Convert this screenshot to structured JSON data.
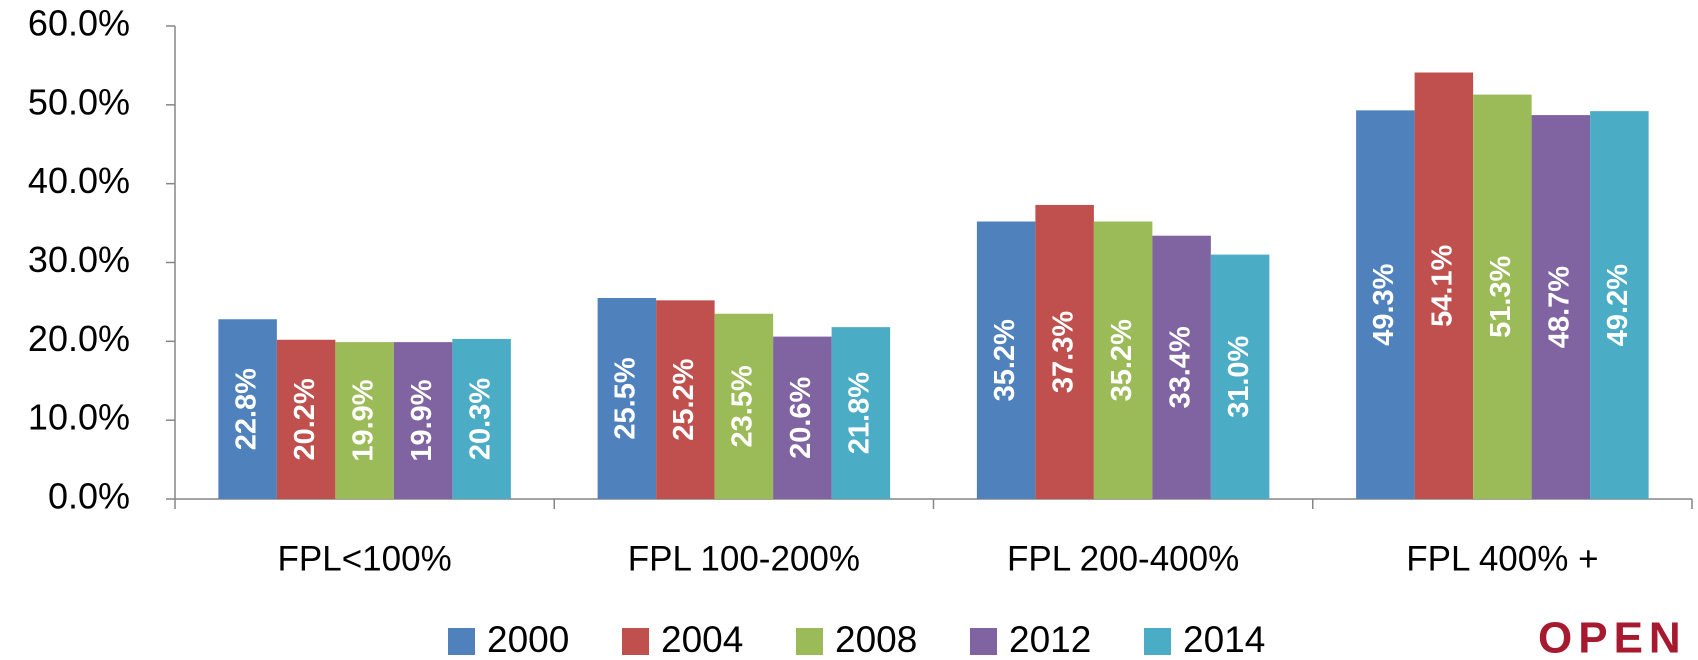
{
  "chart_data": {
    "type": "bar",
    "categories": [
      "FPL<100%",
      "FPL 100-200%",
      "FPL 200-400%",
      "FPL 400% +"
    ],
    "series": [
      {
        "name": "2000",
        "color": "#4f81bd",
        "values": [
          22.8,
          25.5,
          35.2,
          49.3
        ],
        "value_labels": [
          "22.8%",
          "25.5%",
          "35.2%",
          "49.3%"
        ]
      },
      {
        "name": "2004",
        "color": "#c0504d",
        "values": [
          20.2,
          25.2,
          37.3,
          54.1
        ],
        "value_labels": [
          "20.2%",
          "25.2%",
          "37.3%",
          "54.1%"
        ]
      },
      {
        "name": "2008",
        "color": "#9bbb59",
        "values": [
          19.9,
          23.5,
          35.2,
          51.3
        ],
        "value_labels": [
          "19.9%",
          "23.5%",
          "35.2%",
          "51.3%"
        ]
      },
      {
        "name": "2012",
        "color": "#8064a2",
        "values": [
          19.9,
          20.6,
          33.4,
          48.7
        ],
        "value_labels": [
          "19.9%",
          "20.6%",
          "33.4%",
          "48.7%"
        ]
      },
      {
        "name": "2014",
        "color": "#4bacc6",
        "values": [
          20.3,
          21.8,
          31.0,
          49.2
        ],
        "value_labels": [
          "20.3%",
          "21.8%",
          "31.0%",
          "49.2%"
        ]
      }
    ],
    "ylim": [
      0,
      60
    ],
    "yticks": [
      {
        "value": 0,
        "label": "0.0%"
      },
      {
        "value": 10,
        "label": "10.0%"
      },
      {
        "value": 20,
        "label": "20.0%"
      },
      {
        "value": 30,
        "label": "30.0%"
      },
      {
        "value": 40,
        "label": "40.0%"
      },
      {
        "value": 50,
        "label": "50.0%"
      },
      {
        "value": 60,
        "label": "60.0%"
      }
    ],
    "grid": false,
    "legend": "bottom",
    "logo": "OPEN"
  }
}
